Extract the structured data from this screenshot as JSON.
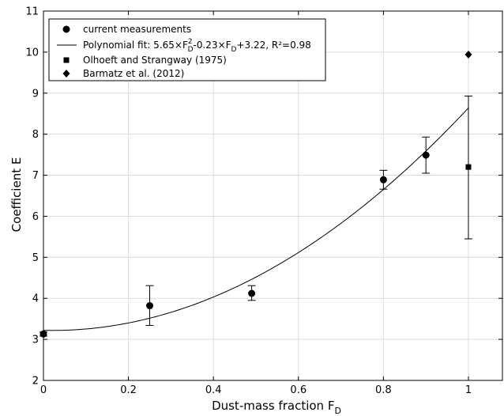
{
  "chart_data": {
    "type": "scatter",
    "title": "",
    "xlabel": "Dust-mass fraction F",
    "xlabel_sub": "D",
    "ylabel": "Coefficient E",
    "xlim": [
      0,
      1.08
    ],
    "ylim": [
      2,
      11
    ],
    "grid": true,
    "legend_position": "top-left",
    "x_ticks": [
      0,
      0.2,
      0.4,
      0.6,
      0.8,
      1
    ],
    "x_tick_labels": [
      "0",
      "0.2",
      "0.4",
      "0.6",
      "0.8",
      "1"
    ],
    "y_ticks": [
      2,
      3,
      4,
      5,
      6,
      7,
      8,
      9,
      10,
      11
    ],
    "y_tick_labels": [
      "2",
      "3",
      "4",
      "5",
      "6",
      "7",
      "8",
      "9",
      "10",
      "11"
    ],
    "series": [
      {
        "name": "current measurements",
        "marker": "circle",
        "points": [
          {
            "x": 0.0,
            "y": 3.13,
            "err_low": 3.08,
            "err_high": 3.18
          },
          {
            "x": 0.25,
            "y": 3.82,
            "err_low": 3.34,
            "err_high": 4.31
          },
          {
            "x": 0.49,
            "y": 4.12,
            "err_low": 3.95,
            "err_high": 4.31
          },
          {
            "x": 0.8,
            "y": 6.89,
            "err_low": 6.66,
            "err_high": 7.12
          },
          {
            "x": 0.9,
            "y": 7.49,
            "err_low": 7.05,
            "err_high": 7.93
          },
          {
            "x": 1.0,
            "y": 8.64,
            "err_low": 5.45,
            "err_high": 8.93,
            "marker": "none"
          }
        ]
      },
      {
        "name": "Polynomial fit",
        "type": "line",
        "coefficients": [
          5.65,
          -0.23,
          3.22
        ],
        "x_range": [
          0,
          1
        ],
        "legend_parts": {
          "pre": "Polynomial fit: 5.65×F",
          "sup": "2",
          "sub1": "D",
          "mid": "-0.23×F",
          "sub2": "D",
          "post": "+3.22, R²=0.98"
        }
      },
      {
        "name": "Olhoeft and Strangway (1975)",
        "marker": "square",
        "points": [
          {
            "x": 1.0,
            "y": 7.2
          }
        ]
      },
      {
        "name": "Barmatz et al. (2012)",
        "marker": "diamond",
        "points": [
          {
            "x": 1.0,
            "y": 9.94
          }
        ]
      }
    ]
  }
}
